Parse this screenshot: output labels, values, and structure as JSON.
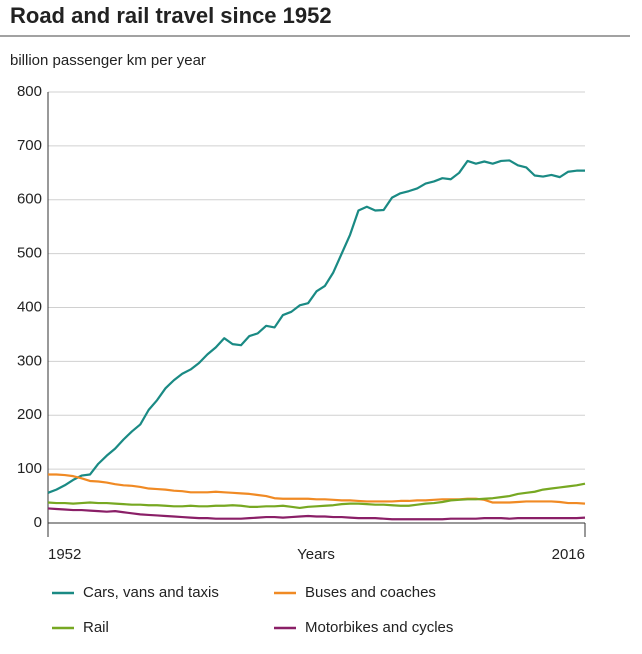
{
  "chart_data": {
    "type": "line",
    "title": "Road and rail travel since 1952",
    "subtitle": "billion passenger km per year",
    "x_label": "Years",
    "x": [
      1952,
      1953,
      1954,
      1955,
      1956,
      1957,
      1958,
      1959,
      1960,
      1961,
      1962,
      1963,
      1964,
      1965,
      1966,
      1967,
      1968,
      1969,
      1970,
      1971,
      1972,
      1973,
      1974,
      1975,
      1976,
      1977,
      1978,
      1979,
      1980,
      1981,
      1982,
      1983,
      1984,
      1985,
      1986,
      1987,
      1988,
      1989,
      1990,
      1991,
      1992,
      1993,
      1994,
      1995,
      1996,
      1997,
      1998,
      1999,
      2000,
      2001,
      2002,
      2003,
      2004,
      2005,
      2006,
      2007,
      2008,
      2009,
      2010,
      2011,
      2012,
      2013,
      2014,
      2015,
      2016
    ],
    "xlim": [
      1952,
      2016
    ],
    "xticks": [
      1952,
      2016
    ],
    "ylim": [
      0,
      800
    ],
    "yticks": [
      0,
      100,
      200,
      300,
      400,
      500,
      600,
      700,
      800
    ],
    "grid": true,
    "series": [
      {
        "name": "Cars, vans and taxis",
        "color": "#1a8a84",
        "values": [
          56,
          62,
          70,
          80,
          88,
          90,
          110,
          125,
          138,
          155,
          170,
          183,
          210,
          228,
          250,
          265,
          277,
          285,
          297,
          313,
          326,
          343,
          332,
          330,
          347,
          352,
          366,
          363,
          386,
          392,
          404,
          408,
          430,
          440,
          465,
          500,
          535,
          580,
          587,
          580,
          581,
          604,
          612,
          616,
          621,
          630,
          634,
          640,
          638,
          650,
          672,
          667,
          671,
          667,
          672,
          673,
          664,
          660,
          645,
          643,
          646,
          642,
          652,
          654,
          654
        ]
      },
      {
        "name": "Buses and coaches",
        "color": "#f08a24",
        "values": [
          90,
          90,
          89,
          87,
          83,
          78,
          77,
          75,
          72,
          70,
          69,
          67,
          64,
          63,
          62,
          60,
          59,
          57,
          57,
          57,
          58,
          57,
          56,
          55,
          54,
          52,
          50,
          46,
          45,
          45,
          45,
          45,
          44,
          44,
          43,
          42,
          42,
          41,
          40,
          40,
          40,
          40,
          41,
          41,
          42,
          42,
          43,
          44,
          44,
          44,
          45,
          45,
          43,
          38,
          38,
          38,
          39,
          40,
          40,
          40,
          40,
          39,
          37,
          37,
          36
        ]
      },
      {
        "name": "Rail",
        "color": "#77a822",
        "values": [
          38,
          37,
          37,
          36,
          37,
          38,
          37,
          37,
          36,
          35,
          34,
          34,
          33,
          33,
          32,
          31,
          31,
          32,
          31,
          31,
          32,
          32,
          33,
          32,
          30,
          30,
          31,
          31,
          32,
          30,
          28,
          30,
          31,
          32,
          33,
          35,
          36,
          36,
          35,
          34,
          34,
          33,
          32,
          32,
          34,
          36,
          37,
          39,
          42,
          43,
          44,
          44,
          45,
          46,
          48,
          50,
          54,
          56,
          58,
          62,
          64,
          66,
          68,
          70,
          73
        ]
      },
      {
        "name": "Motorbikes and cycles",
        "color": "#8a1f67",
        "values": [
          27,
          26,
          25,
          24,
          24,
          23,
          22,
          21,
          22,
          20,
          18,
          16,
          15,
          14,
          13,
          12,
          11,
          10,
          9,
          9,
          8,
          8,
          8,
          8,
          9,
          10,
          11,
          11,
          10,
          11,
          12,
          13,
          12,
          12,
          11,
          11,
          10,
          9,
          9,
          9,
          8,
          7,
          7,
          7,
          7,
          7,
          7,
          7,
          8,
          8,
          8,
          8,
          9,
          9,
          9,
          8,
          9,
          9,
          9,
          9,
          9,
          9,
          9,
          9,
          10
        ]
      }
    ]
  }
}
